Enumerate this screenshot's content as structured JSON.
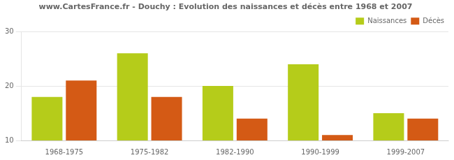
{
  "chart_data": {
    "type": "bar",
    "title": "www.CartesFrance.fr - Douchy : Evolution des naissances et décès entre 1968 et 2007",
    "categories": [
      "1968-1975",
      "1975-1982",
      "1982-1990",
      "1990-1999",
      "1999-2007"
    ],
    "series": [
      {
        "name": "Naissances",
        "color": "#b5cc1a",
        "values": [
          18,
          26,
          20,
          24,
          15
        ]
      },
      {
        "name": "Décès",
        "color": "#d45a15",
        "values": [
          21,
          18,
          14,
          11,
          14
        ]
      }
    ],
    "ylim": [
      10,
      30
    ],
    "yticks": [
      10,
      20,
      30
    ],
    "grid": true,
    "legend": "upper right"
  }
}
